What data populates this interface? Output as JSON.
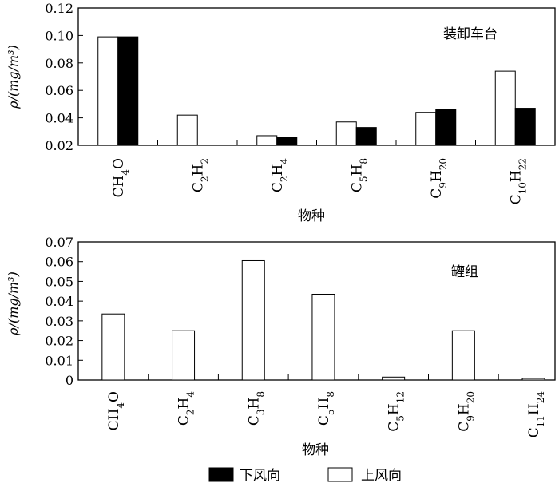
{
  "chart_data": [
    {
      "type": "bar",
      "annotation": "装卸车台",
      "xlabel": "物种",
      "ylabel": "ρ/(mg/m³)",
      "ylim": [
        0.02,
        0.12
      ],
      "yticks": [
        "0.02",
        "0.04",
        "0.06",
        "0.08",
        "0.10",
        "0.12"
      ],
      "categories": [
        "CH4O",
        "C2H2",
        "C2H4",
        "C5H8",
        "C9H20",
        "C10H22"
      ],
      "series": [
        {
          "name": "上风向",
          "color": "#ffffff",
          "values": [
            0.099,
            0.042,
            0.027,
            0.037,
            0.044,
            0.074
          ]
        },
        {
          "name": "下风向",
          "color": "#000000",
          "values": [
            0.099,
            null,
            0.026,
            0.033,
            0.046,
            0.047
          ]
        }
      ]
    },
    {
      "type": "bar",
      "annotation": "罐组",
      "xlabel": "物种",
      "ylabel": "ρ/(mg/m³)",
      "ylim": [
        0,
        0.07
      ],
      "yticks": [
        "0",
        "0.01",
        "0.02",
        "0.03",
        "0.04",
        "0.05",
        "0.06",
        "0.07"
      ],
      "categories": [
        "CH4O",
        "C2H4",
        "C3H8",
        "C5H8",
        "C5H12",
        "C9H20",
        "C11H24"
      ],
      "series": [
        {
          "name": "上风向",
          "color": "#ffffff",
          "values": [
            0.0335,
            0.025,
            0.0605,
            0.0435,
            0.0015,
            0.025,
            0.0008
          ]
        }
      ]
    }
  ],
  "legend": [
    {
      "label": "下风向",
      "color": "#000000"
    },
    {
      "label": "上风向",
      "color": "#ffffff"
    }
  ]
}
